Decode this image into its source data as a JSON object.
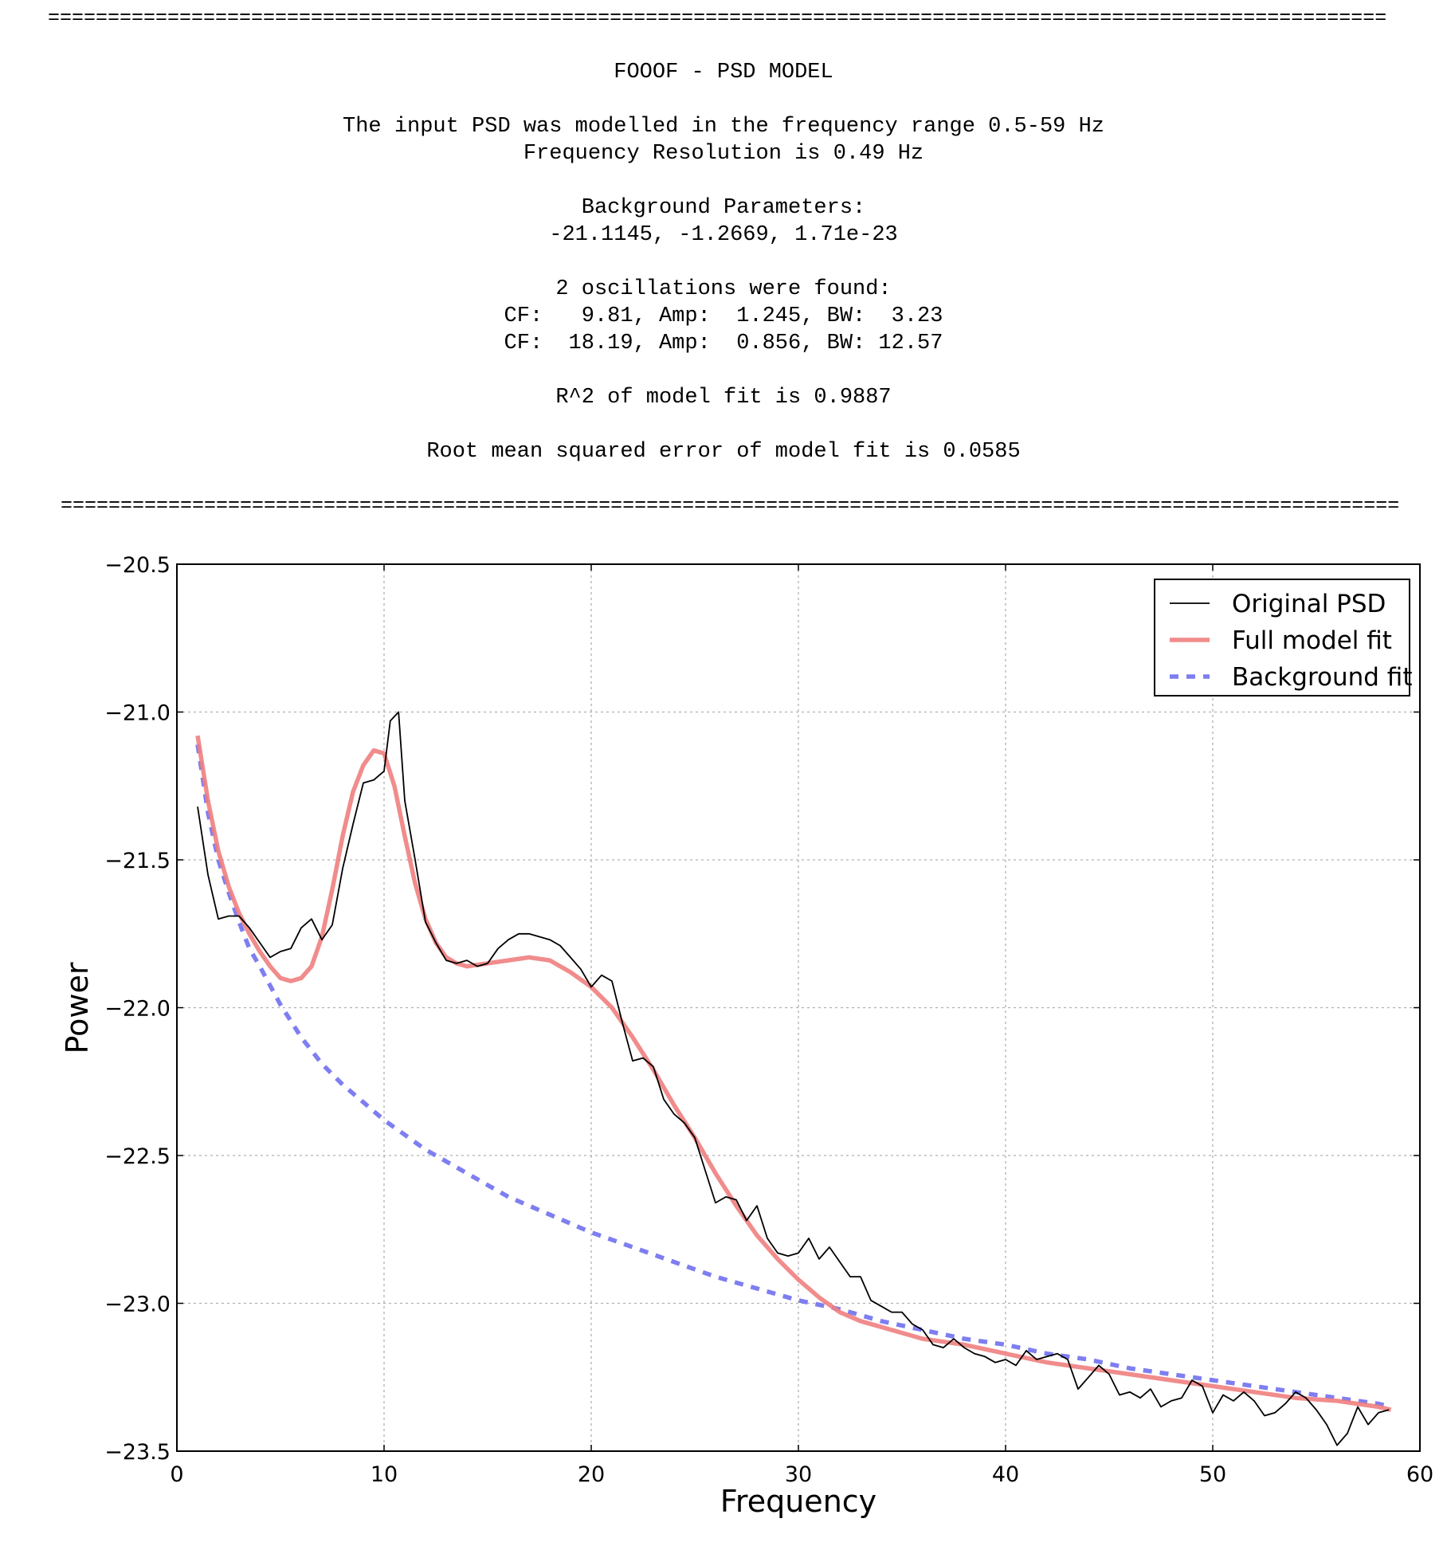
{
  "report": {
    "separator": "================================================================================================================",
    "title": "FOOOF - PSD MODEL",
    "range_line": "The input PSD was modelled in the frequency range 0.5-59 Hz",
    "resolution_line": "Frequency Resolution is 0.49 Hz",
    "bg_header": "Background Parameters:",
    "bg_values": "-21.1145, -1.2669, 1.71e-23",
    "osc_header": "2 oscillations were found:",
    "osc_1": "CF:   9.81, Amp:  1.245, BW:  3.23",
    "osc_2": "CF:  18.19, Amp:  0.856, BW: 12.57",
    "r2_line": "R^2 of model fit is 0.9887",
    "rmse_line": "Root mean squared error of model fit is 0.0585"
  },
  "chart_data": {
    "type": "line",
    "xlabel": "Frequency",
    "ylabel": "Power",
    "xlim": [
      0,
      60
    ],
    "ylim": [
      -23.5,
      -20.5
    ],
    "xticks": [
      "0",
      "10",
      "20",
      "30",
      "40",
      "50",
      "60"
    ],
    "yticks": [
      "−20.5",
      "−21.0",
      "−21.5",
      "−22.0",
      "−22.5",
      "−23.0",
      "−23.5"
    ],
    "grid": true,
    "legend_position": "top-right",
    "series": [
      {
        "name": "Original PSD",
        "style": "solid-thin",
        "color": "#000000",
        "x": [
          1.0,
          1.5,
          2.0,
          2.5,
          3.0,
          3.5,
          4.0,
          4.5,
          5.0,
          5.5,
          6.0,
          6.5,
          7.0,
          7.5,
          8.0,
          8.5,
          9.0,
          9.5,
          10.0,
          10.3,
          10.7,
          11.0,
          11.5,
          12.0,
          12.5,
          13.0,
          13.5,
          14.0,
          14.5,
          15.0,
          15.5,
          16.0,
          16.5,
          17.0,
          17.5,
          18.0,
          18.5,
          19.0,
          19.5,
          20.0,
          20.5,
          21.0,
          21.5,
          22.0,
          22.5,
          23.0,
          23.5,
          24.0,
          24.5,
          25.0,
          25.5,
          26.0,
          26.5,
          27.0,
          27.5,
          28.0,
          28.5,
          29.0,
          29.5,
          30.0,
          30.5,
          31.0,
          31.5,
          32.0,
          32.5,
          33.0,
          33.5,
          34.0,
          34.5,
          35.0,
          35.5,
          36.0,
          36.5,
          37.0,
          37.5,
          38.0,
          38.5,
          39.0,
          39.5,
          40.0,
          40.5,
          41.0,
          41.5,
          42.0,
          42.5,
          43.0,
          43.5,
          44.0,
          44.5,
          45.0,
          45.5,
          46.0,
          46.5,
          47.0,
          47.5,
          48.0,
          48.5,
          49.0,
          49.5,
          50.0,
          50.5,
          51.0,
          51.5,
          52.0,
          52.5,
          53.0,
          53.5,
          54.0,
          54.5,
          55.0,
          55.5,
          56.0,
          56.5,
          57.0,
          57.5,
          58.0,
          58.5
        ],
        "y": [
          -21.32,
          -21.55,
          -21.7,
          -21.69,
          -21.69,
          -21.73,
          -21.78,
          -21.83,
          -21.81,
          -21.8,
          -21.73,
          -21.7,
          -21.77,
          -21.72,
          -21.53,
          -21.38,
          -21.24,
          -21.23,
          -21.2,
          -21.03,
          -21.0,
          -21.3,
          -21.5,
          -21.71,
          -21.78,
          -21.84,
          -21.85,
          -21.84,
          -21.86,
          -21.85,
          -21.8,
          -21.77,
          -21.75,
          -21.75,
          -21.76,
          -21.77,
          -21.79,
          -21.83,
          -21.87,
          -21.93,
          -21.89,
          -21.91,
          -22.05,
          -22.18,
          -22.17,
          -22.2,
          -22.31,
          -22.36,
          -22.39,
          -22.44,
          -22.55,
          -22.66,
          -22.64,
          -22.65,
          -22.72,
          -22.67,
          -22.78,
          -22.83,
          -22.84,
          -22.83,
          -22.78,
          -22.85,
          -22.81,
          -22.86,
          -22.91,
          -22.91,
          -22.99,
          -23.01,
          -23.03,
          -23.03,
          -23.07,
          -23.09,
          -23.14,
          -23.15,
          -23.12,
          -23.15,
          -23.17,
          -23.18,
          -23.2,
          -23.19,
          -23.21,
          -23.16,
          -23.19,
          -23.18,
          -23.17,
          -23.19,
          -23.29,
          -23.25,
          -23.21,
          -23.24,
          -23.31,
          -23.3,
          -23.32,
          -23.29,
          -23.35,
          -23.33,
          -23.32,
          -23.26,
          -23.28,
          -23.37,
          -23.31,
          -23.33,
          -23.3,
          -23.33,
          -23.38,
          -23.37,
          -23.34,
          -23.3,
          -23.32,
          -23.36,
          -23.41,
          -23.48,
          -23.44,
          -23.35,
          -23.41,
          -23.37,
          -23.36
        ]
      },
      {
        "name": "Full model fit",
        "style": "solid-thick",
        "color": "#f08080",
        "x": [
          1.0,
          1.5,
          2.0,
          2.5,
          3.0,
          3.5,
          4.0,
          4.5,
          5.0,
          5.5,
          6.0,
          6.5,
          7.0,
          7.5,
          8.0,
          8.5,
          9.0,
          9.5,
          10.0,
          10.5,
          11.0,
          11.5,
          12.0,
          12.5,
          13.0,
          13.5,
          14.0,
          15.0,
          16.0,
          17.0,
          18.0,
          19.0,
          20.0,
          21.0,
          22.0,
          23.0,
          24.0,
          25.0,
          26.0,
          27.0,
          28.0,
          29.0,
          30.0,
          31.0,
          32.0,
          33.0,
          34.0,
          35.0,
          36.0,
          37.0,
          38.0,
          40.0,
          42.0,
          44.0,
          46.0,
          48.0,
          50.0,
          52.0,
          54.0,
          56.0,
          58.0,
          58.6
        ],
        "y": [
          -21.08,
          -21.3,
          -21.47,
          -21.59,
          -21.68,
          -21.75,
          -21.81,
          -21.86,
          -21.9,
          -21.91,
          -21.9,
          -21.86,
          -21.76,
          -21.6,
          -21.42,
          -21.27,
          -21.18,
          -21.13,
          -21.14,
          -21.25,
          -21.42,
          -21.58,
          -21.7,
          -21.78,
          -21.83,
          -21.85,
          -21.86,
          -21.85,
          -21.84,
          -21.83,
          -21.84,
          -21.88,
          -21.93,
          -22.0,
          -22.1,
          -22.21,
          -22.33,
          -22.44,
          -22.56,
          -22.67,
          -22.77,
          -22.85,
          -22.92,
          -22.98,
          -23.03,
          -23.06,
          -23.08,
          -23.1,
          -23.12,
          -23.13,
          -23.14,
          -23.17,
          -23.2,
          -23.22,
          -23.24,
          -23.26,
          -23.28,
          -23.3,
          -23.32,
          -23.33,
          -23.35,
          -23.36
        ]
      },
      {
        "name": "Background fit",
        "style": "dashed-thick",
        "color": "#7070f0",
        "x": [
          1.0,
          1.5,
          2.0,
          2.5,
          3.0,
          3.5,
          4.0,
          5.0,
          6.0,
          7.0,
          8.0,
          9.0,
          10.0,
          12.0,
          14.0,
          16.0,
          18.0,
          20.0,
          22.0,
          24.0,
          26.0,
          28.0,
          30.0,
          32.0,
          34.0,
          36.0,
          38.0,
          40.0,
          42.0,
          44.0,
          46.0,
          48.0,
          50.0,
          52.0,
          54.0,
          56.0,
          58.0,
          58.6
        ],
        "y": [
          -21.11,
          -21.34,
          -21.5,
          -21.61,
          -21.71,
          -21.8,
          -21.86,
          -21.99,
          -22.1,
          -22.19,
          -22.26,
          -22.32,
          -22.38,
          -22.48,
          -22.56,
          -22.64,
          -22.7,
          -22.76,
          -22.81,
          -22.86,
          -22.91,
          -22.95,
          -22.99,
          -23.02,
          -23.06,
          -23.09,
          -23.12,
          -23.14,
          -23.17,
          -23.19,
          -23.22,
          -23.24,
          -23.26,
          -23.28,
          -23.3,
          -23.32,
          -23.34,
          -23.35
        ]
      }
    ]
  }
}
